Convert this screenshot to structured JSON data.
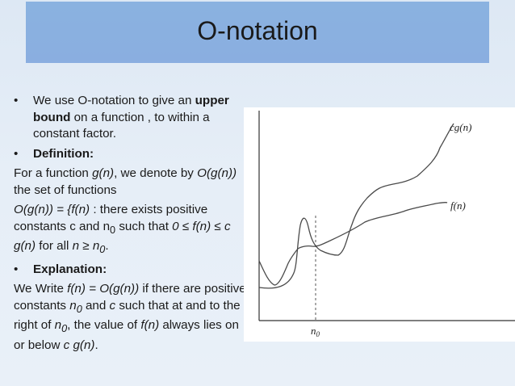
{
  "slide": {
    "title": "O-notation"
  },
  "text": {
    "b1_part1": "We use O-notation to give an ",
    "b1_bold": "upper bound",
    "b1_part2": " on a function , to within a constant factor.",
    "b2_bold": "Definition:",
    "p1_a": "For a function ",
    "p1_gn": "g(n)",
    "p1_b": ", we denote by ",
    "p1_ogn": "O(g(n))",
    "p1_c": " the set of functions",
    "p2_a": "O(g(n)) = {f(n)",
    "p2_b": " : there exists positive constants c and n",
    "p2_sub0": "0",
    "p2_c": " such that ",
    "p2_d": "0 ≤ f(n)  ≤ c g(n)",
    "p2_e": " for all ",
    "p2_f": "n ≥ n",
    "p2_sub1": "0",
    "p2_g": ".",
    "b3_bold": "Explanation:",
    "p3_a": "We Write ",
    "p3_b": "f(n) = O(g(n))",
    "p3_c": " if there are positive constants ",
    "p3_d": "n",
    "p3_sub0": "0",
    "p3_e": " and ",
    "p3_f": "c",
    "p3_g": " such that at and to the right of ",
    "p3_h": "n",
    "p3_sub1": "0",
    "p3_i": ", the value of ",
    "p3_j": "f(n)",
    "p3_k": " always lies on or below ",
    "p3_l": "c g(n)",
    "p3_m": "."
  },
  "figure": {
    "cg_label": "cg(n)",
    "f_label": "f(n)",
    "n0_label": "n",
    "n0_sub": "0"
  }
}
